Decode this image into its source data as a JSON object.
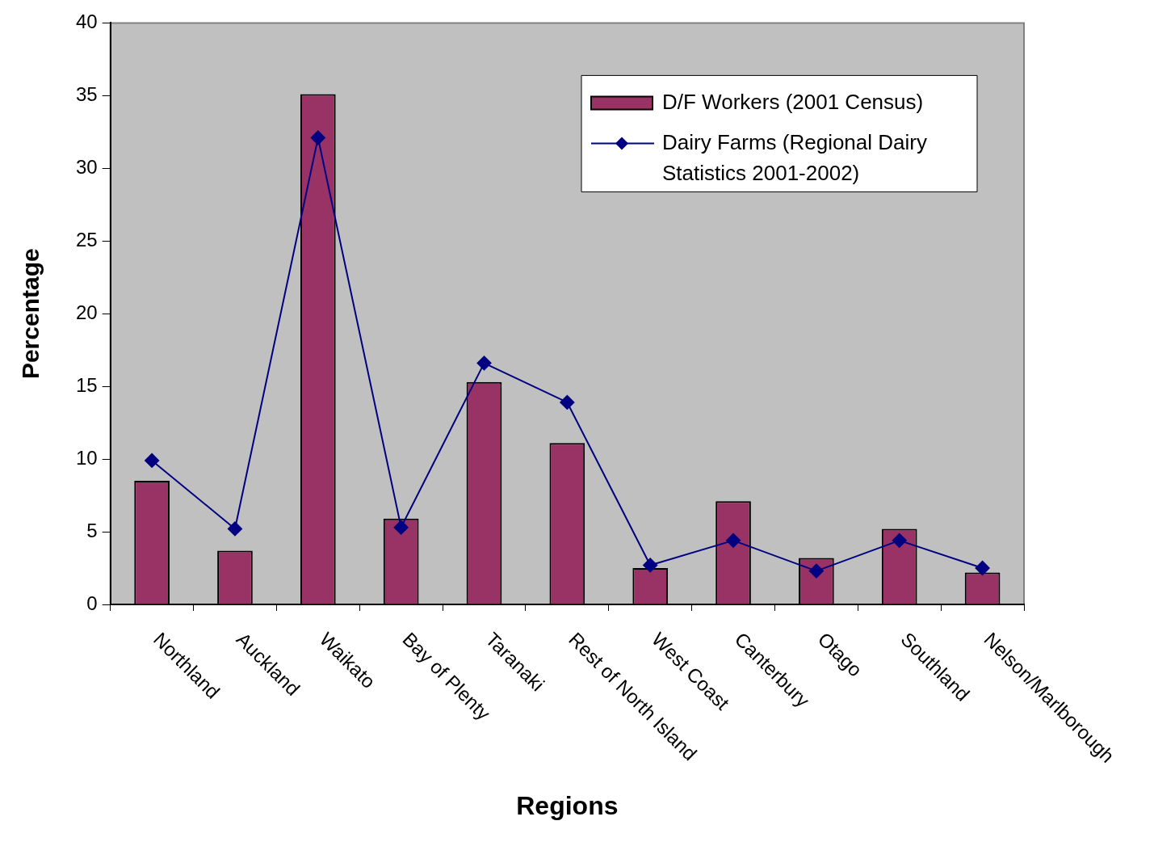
{
  "chart_data": {
    "type": "bar",
    "xlabel": "Regions",
    "ylabel": "Percentage",
    "categories": [
      "Northland",
      "Auckland",
      "Waikato",
      "Bay of Plenty",
      "Taranaki",
      "Rest of North Island",
      "West Coast",
      "Canterbury",
      "Otago",
      "Southland",
      "Nelson/Marlborough"
    ],
    "series": [
      {
        "name": "D/F Workers (2001 Census)",
        "color": "#993366",
        "values": [
          8.5,
          3.7,
          35.1,
          5.9,
          15.3,
          11.1,
          2.5,
          7.1,
          3.2,
          5.2,
          2.2
        ]
      },
      {
        "name": "Dairy Farms (Regional Dairy Statistics 2001-2002)",
        "type": "line",
        "color": "#000080",
        "marker": "diamond",
        "values": [
          9.9,
          5.2,
          32.1,
          5.3,
          16.6,
          13.9,
          2.7,
          4.4,
          2.3,
          4.4,
          2.5
        ]
      }
    ],
    "ylim": [
      0,
      40
    ],
    "yticks": [
      0,
      5,
      10,
      15,
      20,
      25,
      30,
      35,
      40
    ],
    "grid": false,
    "legend": "top right"
  }
}
